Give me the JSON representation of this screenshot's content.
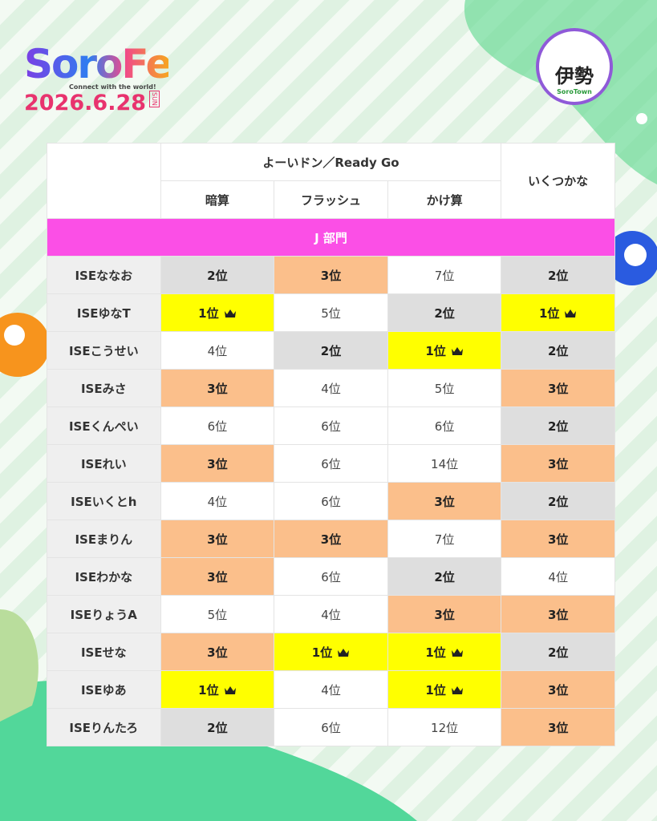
{
  "logo": {
    "title": "SoroFes",
    "tagline": "Connect with the world!",
    "date": "2026.6.28",
    "weekday": "SUN"
  },
  "badge": {
    "label": "伊勢",
    "sub": "SoroTown"
  },
  "table": {
    "group_header": "よーいドン／Ready Go",
    "side_header": "いくつかな",
    "sub_headers": [
      "暗算",
      "フラッシュ",
      "かけ算"
    ],
    "section": "J 部門",
    "rows": [
      [
        "ISEななお",
        "2位",
        "3位",
        "7位",
        "2位"
      ],
      [
        "ISEゆなT",
        "1位",
        "5位",
        "2位",
        "1位"
      ],
      [
        "ISEこうせい",
        "4位",
        "2位",
        "1位",
        "2位"
      ],
      [
        "ISEみさ",
        "3位",
        "4位",
        "5位",
        "3位"
      ],
      [
        "ISEくんぺい",
        "6位",
        "6位",
        "6位",
        "2位"
      ],
      [
        "ISEれい",
        "3位",
        "6位",
        "14位",
        "3位"
      ],
      [
        "ISEいくとh",
        "4位",
        "6位",
        "3位",
        "2位"
      ],
      [
        "ISEまりん",
        "3位",
        "3位",
        "7位",
        "3位"
      ],
      [
        "ISEわかな",
        "3位",
        "6位",
        "2位",
        "4位"
      ],
      [
        "ISEりょうA",
        "5位",
        "4位",
        "3位",
        "3位"
      ],
      [
        "ISEせな",
        "3位",
        "1位",
        "1位",
        "2位"
      ],
      [
        "ISEゆあ",
        "1位",
        "4位",
        "1位",
        "3位"
      ],
      [
        "ISEりんたろ",
        "2位",
        "6位",
        "12位",
        "3位"
      ]
    ],
    "highlight": {
      "1位": {
        "bg": "#ffff00",
        "crown": true
      },
      "2位": {
        "bg": "#dedede"
      },
      "3位": {
        "bg": "#fbbf8b"
      }
    }
  }
}
